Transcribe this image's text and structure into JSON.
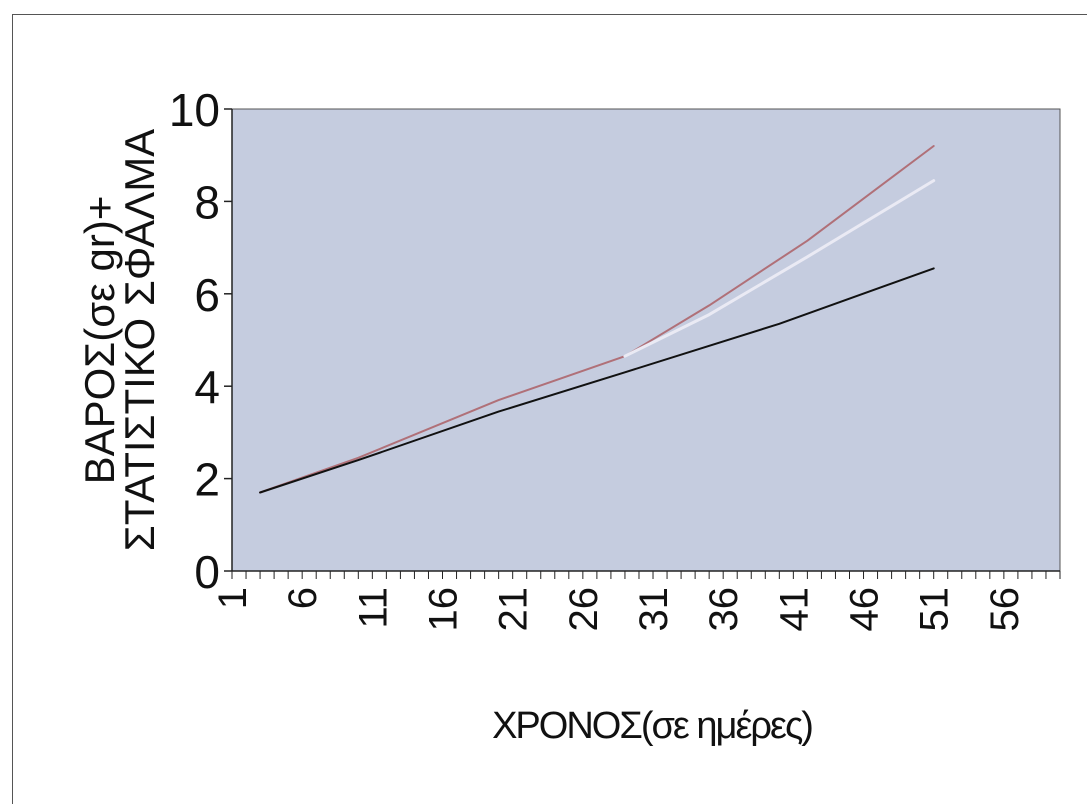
{
  "chart_data": {
    "type": "line",
    "title": "",
    "xlabel": "ΧΡΟΝΟΣ(σε ημέρες)",
    "ylabel_lines": [
      "ΒΑΡΟΣ(σε gr)+",
      "ΣΤΑΤΙΣΤΙΚΟ ΣΦΑΛΜΑ"
    ],
    "xlim": [
      1,
      60
    ],
    "ylim": [
      0,
      10
    ],
    "x_ticks": [
      1,
      6,
      11,
      16,
      21,
      26,
      31,
      36,
      41,
      46,
      51,
      56
    ],
    "y_ticks": [
      0,
      2,
      4,
      6,
      8,
      10
    ],
    "grid": false,
    "legend": "none",
    "plot_background": "#c5ccdf",
    "series": [
      {
        "color": "#b07078",
        "points": [
          [
            3,
            1.7
          ],
          [
            10,
            2.45
          ],
          [
            20,
            3.7
          ],
          [
            29,
            4.65
          ],
          [
            35,
            5.75
          ],
          [
            42,
            7.15
          ],
          [
            51,
            9.2
          ]
        ]
      },
      {
        "color": "#eaeaf4",
        "points": [
          [
            29,
            4.65
          ],
          [
            35,
            5.55
          ],
          [
            42,
            6.8
          ],
          [
            51,
            8.45
          ]
        ]
      },
      {
        "color": "#111111",
        "points": [
          [
            3,
            1.7
          ],
          [
            10,
            2.4
          ],
          [
            20,
            3.45
          ],
          [
            29,
            4.3
          ],
          [
            40,
            5.35
          ],
          [
            51,
            6.55
          ]
        ]
      }
    ]
  }
}
